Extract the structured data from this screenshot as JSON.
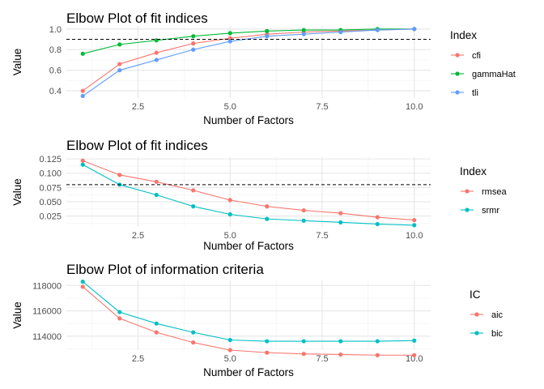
{
  "chart_data": [
    {
      "type": "line",
      "title": "Elbow Plot of fit indices",
      "xlabel": "Number of Factors",
      "ylabel": "Value",
      "x": [
        1,
        2,
        3,
        4,
        5,
        6,
        7,
        8,
        9,
        10
      ],
      "xlim": [
        1,
        10
      ],
      "ylim": [
        0.33,
        1.03
      ],
      "xticks": [
        "2.5",
        "5.0",
        "7.5",
        "10.0"
      ],
      "yticks": [
        "0.4",
        "0.6",
        "0.8",
        "1.0"
      ],
      "reference_line": 0.9,
      "legend_title": "Index",
      "legend_position": "right",
      "grid": true,
      "series": [
        {
          "name": "cfi",
          "color": "#F8766D",
          "values": [
            0.4,
            0.66,
            0.77,
            0.86,
            0.91,
            0.95,
            0.97,
            0.98,
            0.99,
            1.0
          ]
        },
        {
          "name": "gammaHat",
          "color": "#00BA38",
          "values": [
            0.76,
            0.85,
            0.89,
            0.93,
            0.96,
            0.98,
            0.99,
            0.99,
            1.0,
            1.0
          ]
        },
        {
          "name": "tli",
          "color": "#619CFF",
          "values": [
            0.35,
            0.6,
            0.7,
            0.8,
            0.88,
            0.93,
            0.95,
            0.97,
            0.99,
            1.0
          ]
        }
      ]
    },
    {
      "type": "line",
      "title": "Elbow Plot of fit indices",
      "xlabel": "Number of Factors",
      "ylabel": "Value",
      "x": [
        1,
        2,
        3,
        4,
        5,
        6,
        7,
        8,
        9,
        10
      ],
      "xlim": [
        1,
        10
      ],
      "ylim": [
        0.006,
        0.128
      ],
      "xticks": [
        "2.5",
        "5.0",
        "7.5",
        "10.0"
      ],
      "yticks": [
        "0.025",
        "0.050",
        "0.075",
        "0.100",
        "0.125"
      ],
      "reference_line": 0.08,
      "legend_title": "Index",
      "legend_position": "right",
      "grid": true,
      "series": [
        {
          "name": "rmsea",
          "color": "#F8766D",
          "values": [
            0.122,
            0.097,
            0.085,
            0.07,
            0.053,
            0.042,
            0.035,
            0.03,
            0.023,
            0.018
          ]
        },
        {
          "name": "srmr",
          "color": "#00BFC4",
          "values": [
            0.115,
            0.08,
            0.062,
            0.042,
            0.028,
            0.02,
            0.017,
            0.014,
            0.011,
            0.009
          ]
        }
      ]
    },
    {
      "type": "line",
      "title": "Elbow Plot of information criteria",
      "xlabel": "Number of Factors",
      "ylabel": "Value",
      "x": [
        1,
        2,
        3,
        4,
        5,
        6,
        7,
        8,
        9,
        10
      ],
      "xlim": [
        1,
        10
      ],
      "ylim": [
        112900,
        118400
      ],
      "xticks": [
        "2.5",
        "5.0",
        "7.5",
        "10.0"
      ],
      "yticks": [
        "114000",
        "116000",
        "118000"
      ],
      "legend_title": "IC",
      "legend_position": "right",
      "grid": true,
      "series": [
        {
          "name": "aic",
          "color": "#F8766D",
          "values": [
            117900,
            115400,
            114300,
            113500,
            112900,
            112700,
            112600,
            112550,
            112500,
            112500
          ]
        },
        {
          "name": "bic",
          "color": "#00BFC4",
          "values": [
            118300,
            115900,
            115000,
            114300,
            113700,
            113600,
            113600,
            113600,
            113600,
            113650
          ]
        }
      ]
    }
  ]
}
